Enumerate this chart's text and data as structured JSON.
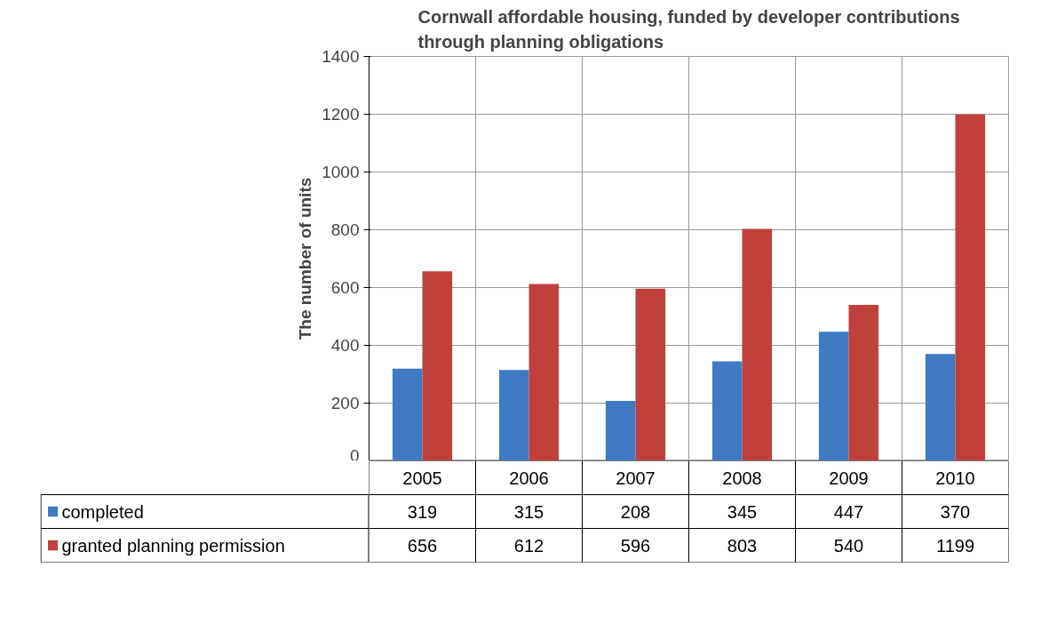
{
  "chart_data": {
    "type": "bar",
    "title": "Cornwall affordable housing, funded by developer contributions\nthrough planning obligations",
    "ylabel": "The number of units",
    "categories": [
      "2005",
      "2006",
      "2007",
      "2008",
      "2009",
      "2010"
    ],
    "series": [
      {
        "name": "completed",
        "color": "#3f7ac4",
        "values": [
          319,
          315,
          208,
          345,
          447,
          370
        ]
      },
      {
        "name": "granted planning permission",
        "color": "#c0403c",
        "values": [
          656,
          612,
          596,
          803,
          540,
          1199
        ]
      }
    ],
    "ylim": [
      0,
      1400
    ],
    "yticks": [
      0,
      200,
      400,
      600,
      800,
      1000,
      1200,
      1400
    ],
    "grid": true,
    "data_labels": true,
    "legend": "bottom"
  }
}
